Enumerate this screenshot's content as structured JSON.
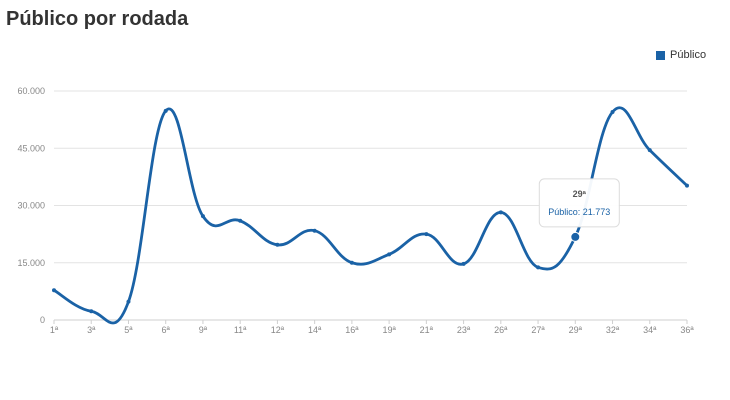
{
  "chart_data": {
    "type": "line",
    "title": "Público por rodada",
    "legend": {
      "position": "top-right"
    },
    "series": [
      {
        "name": "Público",
        "color": "#1a62a6",
        "points": [
          {
            "x": 1,
            "y": 7800
          },
          {
            "x": 3,
            "y": 2300
          },
          {
            "x": 5,
            "y": 4800
          },
          {
            "x": 6,
            "y": 54800
          },
          {
            "x": 9,
            "y": 27200
          },
          {
            "x": 11,
            "y": 26000
          },
          {
            "x": 12,
            "y": 19700
          },
          {
            "x": 14,
            "y": 23400
          },
          {
            "x": 16,
            "y": 15000
          },
          {
            "x": 19,
            "y": 17200
          },
          {
            "x": 21,
            "y": 22500
          },
          {
            "x": 23,
            "y": 14700
          },
          {
            "x": 26,
            "y": 28200
          },
          {
            "x": 27,
            "y": 13800
          },
          {
            "x": 29,
            "y": 21773
          },
          {
            "x": 32,
            "y": 54500
          },
          {
            "x": 34,
            "y": 44500
          },
          {
            "x": 36,
            "y": 35200
          }
        ]
      }
    ],
    "x_tick_labels": [
      "1ª",
      "3ª",
      "5ª",
      "6ª",
      "9ª",
      "11ª",
      "12ª",
      "14ª",
      "16ª",
      "19ª",
      "21ª",
      "23ª",
      "26ª",
      "27ª",
      "29ª",
      "32ª",
      "34ª",
      "36ª"
    ],
    "y_ticks": [
      {
        "value": 0,
        "label": "0"
      },
      {
        "value": 15000,
        "label": "15.000"
      },
      {
        "value": 30000,
        "label": "30.000"
      },
      {
        "value": 45000,
        "label": "45.000"
      },
      {
        "value": 60000,
        "label": "60.000"
      }
    ],
    "ylim": [
      0,
      60000
    ],
    "grid": true,
    "tooltip": {
      "point_index": 14,
      "title": "29ª",
      "label": "Público: 21.773"
    }
  }
}
